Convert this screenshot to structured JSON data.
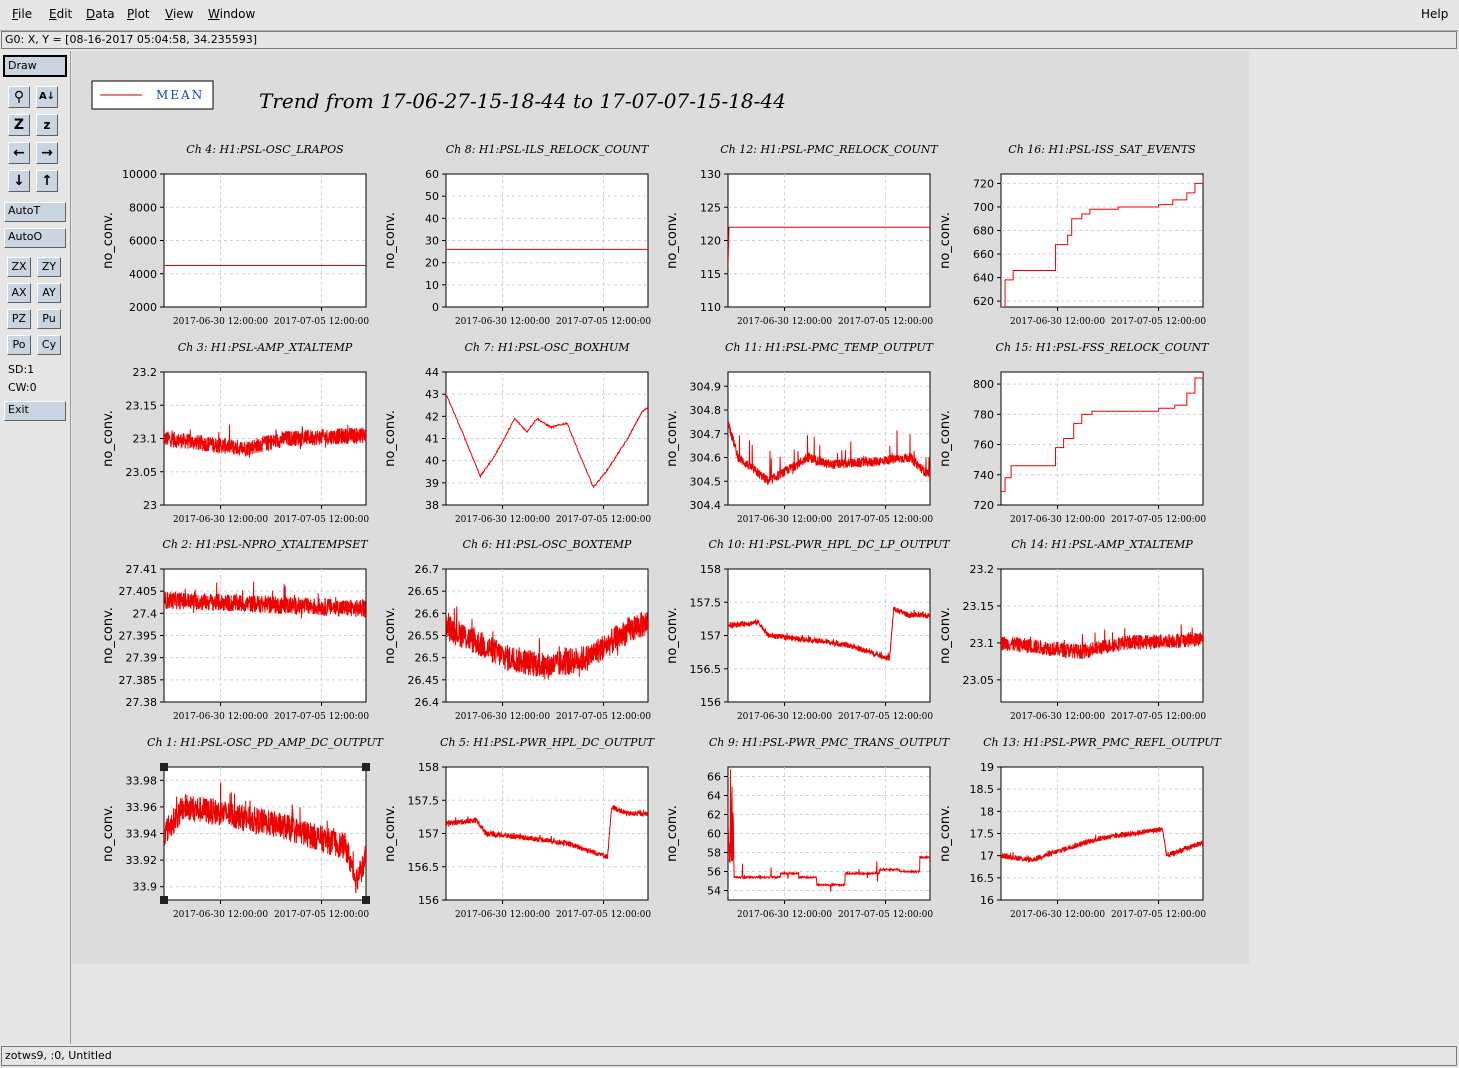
{
  "menubar": {
    "items": [
      "File",
      "Edit",
      "Data",
      "Plot",
      "View",
      "Window"
    ],
    "underline": [
      "F",
      "E",
      "D",
      "P",
      "V",
      "W"
    ],
    "help": "Help"
  },
  "coord_readout": "G0: X, Y = [08-16-2017 05:04:58, 34.235593]",
  "toolbar": {
    "draw": "Draw",
    "autot": "AutoT",
    "autoo": "AutoO",
    "small_buttons": [
      "ZX",
      "ZY",
      "AX",
      "AY",
      "PZ",
      "Pu",
      "Po",
      "Cy"
    ],
    "sd": "SD:1",
    "cw": "CW:0",
    "exit": "Exit"
  },
  "status_text": "zotws9, :0, Untitled",
  "legend": {
    "label": "MEAN",
    "color": "#cc0000"
  },
  "trend_title": "Trend from 17-06-27-15-18-44 to 17-07-07-15-18-44",
  "colors": {
    "trace": "#ee0000",
    "grid": "#d0d0d0",
    "panel_bg": "#dcdcdc"
  },
  "chart_data": [
    {
      "title": "Ch 4: H1:PSL-OSC_LRAPOS",
      "type": "line",
      "ylabel": "no_conv.",
      "yticks": [
        "2000",
        "4000",
        "6000",
        "8000",
        "10000"
      ],
      "ylim": [
        2000,
        10000
      ],
      "xticks": [
        "2017-06-30 12:00:00",
        "2017-07-05 12:00:00"
      ],
      "shape": "flat",
      "level": 4500
    },
    {
      "title": "Ch 8: H1:PSL-ILS_RELOCK_COUNT",
      "type": "line",
      "ylabel": "no_conv.",
      "yticks": [
        "0",
        "10",
        "20",
        "30",
        "40",
        "50",
        "60"
      ],
      "ylim": [
        0,
        60
      ],
      "xticks": [
        "2017-06-30 12:00:00",
        "2017-07-05 12:00:00"
      ],
      "shape": "flat",
      "level": 26
    },
    {
      "title": "Ch 12: H1:PSL-PMC_RELOCK_COUNT",
      "type": "line",
      "ylabel": "no_conv.",
      "yticks": [
        "110",
        "115",
        "120",
        "125",
        "130"
      ],
      "ylim": [
        110,
        130
      ],
      "xticks": [
        "2017-06-30 12:00:00",
        "2017-07-05 12:00:00"
      ],
      "shape": "stepflat",
      "level": 122,
      "start": 116
    },
    {
      "title": "Ch 16: H1:PSL-ISS_SAT_EVENTS",
      "type": "line",
      "ylabel": "no_conv.",
      "yticks": [
        "620",
        "640",
        "660",
        "680",
        "700",
        "720"
      ],
      "ylim": [
        615,
        728
      ],
      "xticks": [
        "2017-06-30 12:00:00",
        "2017-07-05 12:00:00"
      ],
      "shape": "steps",
      "pts": [
        [
          0,
          615
        ],
        [
          0.02,
          638
        ],
        [
          0.06,
          646
        ],
        [
          0.26,
          646
        ],
        [
          0.27,
          668
        ],
        [
          0.33,
          676
        ],
        [
          0.35,
          690
        ],
        [
          0.4,
          694
        ],
        [
          0.44,
          698
        ],
        [
          0.58,
          700
        ],
        [
          0.78,
          702
        ],
        [
          0.85,
          706
        ],
        [
          0.92,
          712
        ],
        [
          0.96,
          720
        ],
        [
          1.0,
          726
        ]
      ]
    },
    {
      "title": "Ch 3: H1:PSL-AMP_XTALTEMP",
      "type": "line",
      "ylabel": "no_conv.",
      "yticks": [
        "23",
        "23.05",
        "23.1",
        "23.15",
        "23.2"
      ],
      "ylim": [
        23,
        23.2
      ],
      "xticks": [
        "2017-06-30 12:00:00",
        "2017-07-05 12:00:00"
      ],
      "shape": "noise",
      "base": 23.1,
      "amp": 0.012,
      "spike": 0.035,
      "drift": [
        [
          0,
          23.1
        ],
        [
          0.4,
          23.085
        ],
        [
          0.6,
          23.1
        ],
        [
          1,
          23.105
        ]
      ]
    },
    {
      "title": "Ch 7: H1:PSL-OSC_BOXHUM",
      "type": "line",
      "ylabel": "no_conv.",
      "yticks": [
        "38",
        "39",
        "40",
        "41",
        "42",
        "43",
        "44"
      ],
      "ylim": [
        38,
        44
      ],
      "xticks": [
        "2017-06-30 12:00:00",
        "2017-07-05 12:00:00"
      ],
      "shape": "smooth",
      "pts": [
        [
          0,
          43
        ],
        [
          0.08,
          41.3
        ],
        [
          0.17,
          39.3
        ],
        [
          0.24,
          40.2
        ],
        [
          0.3,
          41.2
        ],
        [
          0.34,
          41.9
        ],
        [
          0.4,
          41.3
        ],
        [
          0.45,
          41.9
        ],
        [
          0.52,
          41.5
        ],
        [
          0.6,
          41.7
        ],
        [
          0.66,
          40.3
        ],
        [
          0.73,
          38.8
        ],
        [
          0.8,
          39.6
        ],
        [
          0.9,
          41.0
        ],
        [
          0.97,
          42.2
        ],
        [
          1.0,
          42.4
        ]
      ]
    },
    {
      "title": "Ch 11: H1:PSL-PMC_TEMP_OUTPUT",
      "type": "line",
      "ylabel": "no_conv.",
      "yticks": [
        "304.4",
        "304.5",
        "304.6",
        "304.7",
        "304.8",
        "304.9"
      ],
      "ylim": [
        304.4,
        304.96
      ],
      "xticks": [
        "2017-06-30 12:00:00",
        "2017-07-05 12:00:00"
      ],
      "shape": "noise",
      "base": 304.58,
      "amp": 0.02,
      "spike": 0.18,
      "drift": [
        [
          0,
          304.75
        ],
        [
          0.05,
          304.6
        ],
        [
          0.2,
          304.5
        ],
        [
          0.4,
          304.6
        ],
        [
          0.5,
          304.57
        ],
        [
          0.7,
          304.58
        ],
        [
          0.9,
          304.6
        ],
        [
          1,
          304.52
        ]
      ]
    },
    {
      "title": "Ch 15: H1:PSL-FSS_RELOCK_COUNT",
      "type": "line",
      "ylabel": "no_conv.",
      "yticks": [
        "720",
        "740",
        "760",
        "780",
        "800"
      ],
      "ylim": [
        720,
        808
      ],
      "xticks": [
        "2017-06-30 12:00:00",
        "2017-07-05 12:00:00"
      ],
      "shape": "steps",
      "pts": [
        [
          0,
          729
        ],
        [
          0.02,
          738
        ],
        [
          0.05,
          746
        ],
        [
          0.26,
          746
        ],
        [
          0.27,
          758
        ],
        [
          0.31,
          764
        ],
        [
          0.36,
          774
        ],
        [
          0.4,
          780
        ],
        [
          0.45,
          782
        ],
        [
          0.58,
          782
        ],
        [
          0.78,
          784
        ],
        [
          0.86,
          786
        ],
        [
          0.92,
          794
        ],
        [
          0.96,
          804
        ],
        [
          1.0,
          808
        ]
      ]
    },
    {
      "title": "Ch 2: H1:PSL-NPRO_XTALTEMPSET",
      "type": "line",
      "ylabel": "no_conv.",
      "yticks": [
        "27.38",
        "27.385",
        "27.39",
        "27.395",
        "27.4",
        "27.405",
        "27.41"
      ],
      "ylim": [
        27.38,
        27.41
      ],
      "xticks": [
        "2017-06-30 12:00:00",
        "2017-07-05 12:00:00"
      ],
      "shape": "noise",
      "base": 27.403,
      "amp": 0.002,
      "spike": 0.005,
      "drift": [
        [
          0,
          27.403
        ],
        [
          0.5,
          27.402
        ],
        [
          1,
          27.401
        ]
      ]
    },
    {
      "title": "Ch 6: H1:PSL-OSC_BOXTEMP",
      "type": "line",
      "ylabel": "no_conv.",
      "yticks": [
        "26.4",
        "26.45",
        "26.5",
        "26.55",
        "26.6",
        "26.65",
        "26.7"
      ],
      "ylim": [
        26.4,
        26.7
      ],
      "xticks": [
        "2017-06-30 12:00:00",
        "2017-07-05 12:00:00"
      ],
      "shape": "noise",
      "base": 26.5,
      "amp": 0.03,
      "spike": 0.05,
      "drift": [
        [
          0,
          26.57
        ],
        [
          0.3,
          26.5
        ],
        [
          0.5,
          26.48
        ],
        [
          0.7,
          26.5
        ],
        [
          0.9,
          26.56
        ],
        [
          1,
          26.58
        ]
      ]
    },
    {
      "title": "Ch 10: H1:PSL-PWR_HPL_DC_LP_OUTPUT",
      "type": "line",
      "ylabel": "no_conv.",
      "yticks": [
        "156",
        "156.5",
        "157",
        "157.5",
        "158"
      ],
      "ylim": [
        156,
        158
      ],
      "xticks": [
        "2017-06-30 12:00:00",
        "2017-07-05 12:00:00"
      ],
      "shape": "noise",
      "base": 157,
      "amp": 0.04,
      "spike": 0.08,
      "drift": [
        [
          0,
          157.15
        ],
        [
          0.15,
          157.2
        ],
        [
          0.2,
          157.0
        ],
        [
          0.5,
          156.9
        ],
        [
          0.6,
          156.85
        ],
        [
          0.8,
          156.65
        ],
        [
          0.82,
          157.4
        ],
        [
          0.9,
          157.3
        ],
        [
          1,
          157.3
        ]
      ]
    },
    {
      "title": "Ch 14: H1:PSL-AMP_XTALTEMP",
      "type": "line",
      "ylabel": "no_conv.",
      "yticks": [
        "23.05",
        "23.1",
        "23.15",
        "23.2"
      ],
      "ylim": [
        23.02,
        23.2
      ],
      "xticks": [
        "2017-06-30 12:00:00",
        "2017-07-05 12:00:00"
      ],
      "shape": "noise",
      "base": 23.1,
      "amp": 0.01,
      "spike": 0.03,
      "drift": [
        [
          0,
          23.1
        ],
        [
          0.4,
          23.088
        ],
        [
          0.6,
          23.1
        ],
        [
          1,
          23.105
        ]
      ]
    },
    {
      "title": "Ch 1: H1:PSL-OSC_PD_AMP_DC_OUTPUT",
      "type": "line",
      "ylabel": "no_conv.",
      "yticks": [
        "33.9",
        "33.92",
        "33.94",
        "33.96",
        "33.98"
      ],
      "ylim": [
        33.89,
        33.99
      ],
      "xticks": [
        "2017-06-30 12:00:00",
        "2017-07-05 12:00:00"
      ],
      "shape": "noise",
      "base": 33.95,
      "amp": 0.01,
      "spike": 0.02,
      "drift": [
        [
          0,
          33.94
        ],
        [
          0.1,
          33.96
        ],
        [
          0.3,
          33.955
        ],
        [
          0.6,
          33.945
        ],
        [
          0.9,
          33.93
        ],
        [
          0.95,
          33.905
        ],
        [
          1,
          33.92
        ]
      ],
      "selected": true
    },
    {
      "title": "Ch 5: H1:PSL-PWR_HPL_DC_OUTPUT",
      "type": "line",
      "ylabel": "no_conv.",
      "yticks": [
        "156",
        "156.5",
        "157",
        "157.5",
        "158"
      ],
      "ylim": [
        156,
        158
      ],
      "xticks": [
        "2017-06-30 12:00:00",
        "2017-07-05 12:00:00"
      ],
      "shape": "noise",
      "base": 157,
      "amp": 0.04,
      "spike": 0.08,
      "drift": [
        [
          0,
          157.15
        ],
        [
          0.15,
          157.2
        ],
        [
          0.2,
          157.0
        ],
        [
          0.5,
          156.9
        ],
        [
          0.6,
          156.85
        ],
        [
          0.8,
          156.65
        ],
        [
          0.82,
          157.4
        ],
        [
          0.9,
          157.3
        ],
        [
          1,
          157.3
        ]
      ]
    },
    {
      "title": "Ch 9: H1:PSL-PWR_PMC_TRANS_OUTPUT",
      "type": "line",
      "ylabel": "no_conv.",
      "yticks": [
        "54",
        "56",
        "58",
        "60",
        "62",
        "64",
        "66"
      ],
      "ylim": [
        53,
        67
      ],
      "xticks": [
        "2017-06-30 12:00:00",
        "2017-07-05 12:00:00"
      ],
      "shape": "stepnoise",
      "pts": [
        [
          0,
          57
        ],
        [
          0.03,
          55.4
        ],
        [
          0.25,
          55.4
        ],
        [
          0.26,
          55.8
        ],
        [
          0.35,
          55.4
        ],
        [
          0.44,
          54.6
        ],
        [
          0.58,
          55.8
        ],
        [
          0.75,
          56.2
        ],
        [
          0.85,
          56.0
        ],
        [
          0.95,
          57.5
        ],
        [
          1,
          56.5
        ]
      ],
      "amp": 0.2
    },
    {
      "title": "Ch 13: H1:PSL-PWR_PMC_REFL_OUTPUT",
      "type": "line",
      "ylabel": "no_conv.",
      "yticks": [
        "16",
        "16.5",
        "17",
        "17.5",
        "18",
        "18.5",
        "19"
      ],
      "ylim": [
        16,
        19
      ],
      "xticks": [
        "2017-06-30 12:00:00",
        "2017-07-05 12:00:00"
      ],
      "shape": "noise",
      "base": 17,
      "amp": 0.06,
      "spike": 0.1,
      "drift": [
        [
          0,
          17.0
        ],
        [
          0.15,
          16.9
        ],
        [
          0.35,
          17.2
        ],
        [
          0.5,
          17.4
        ],
        [
          0.8,
          17.6
        ],
        [
          0.82,
          17.0
        ],
        [
          1,
          17.3
        ]
      ]
    }
  ]
}
